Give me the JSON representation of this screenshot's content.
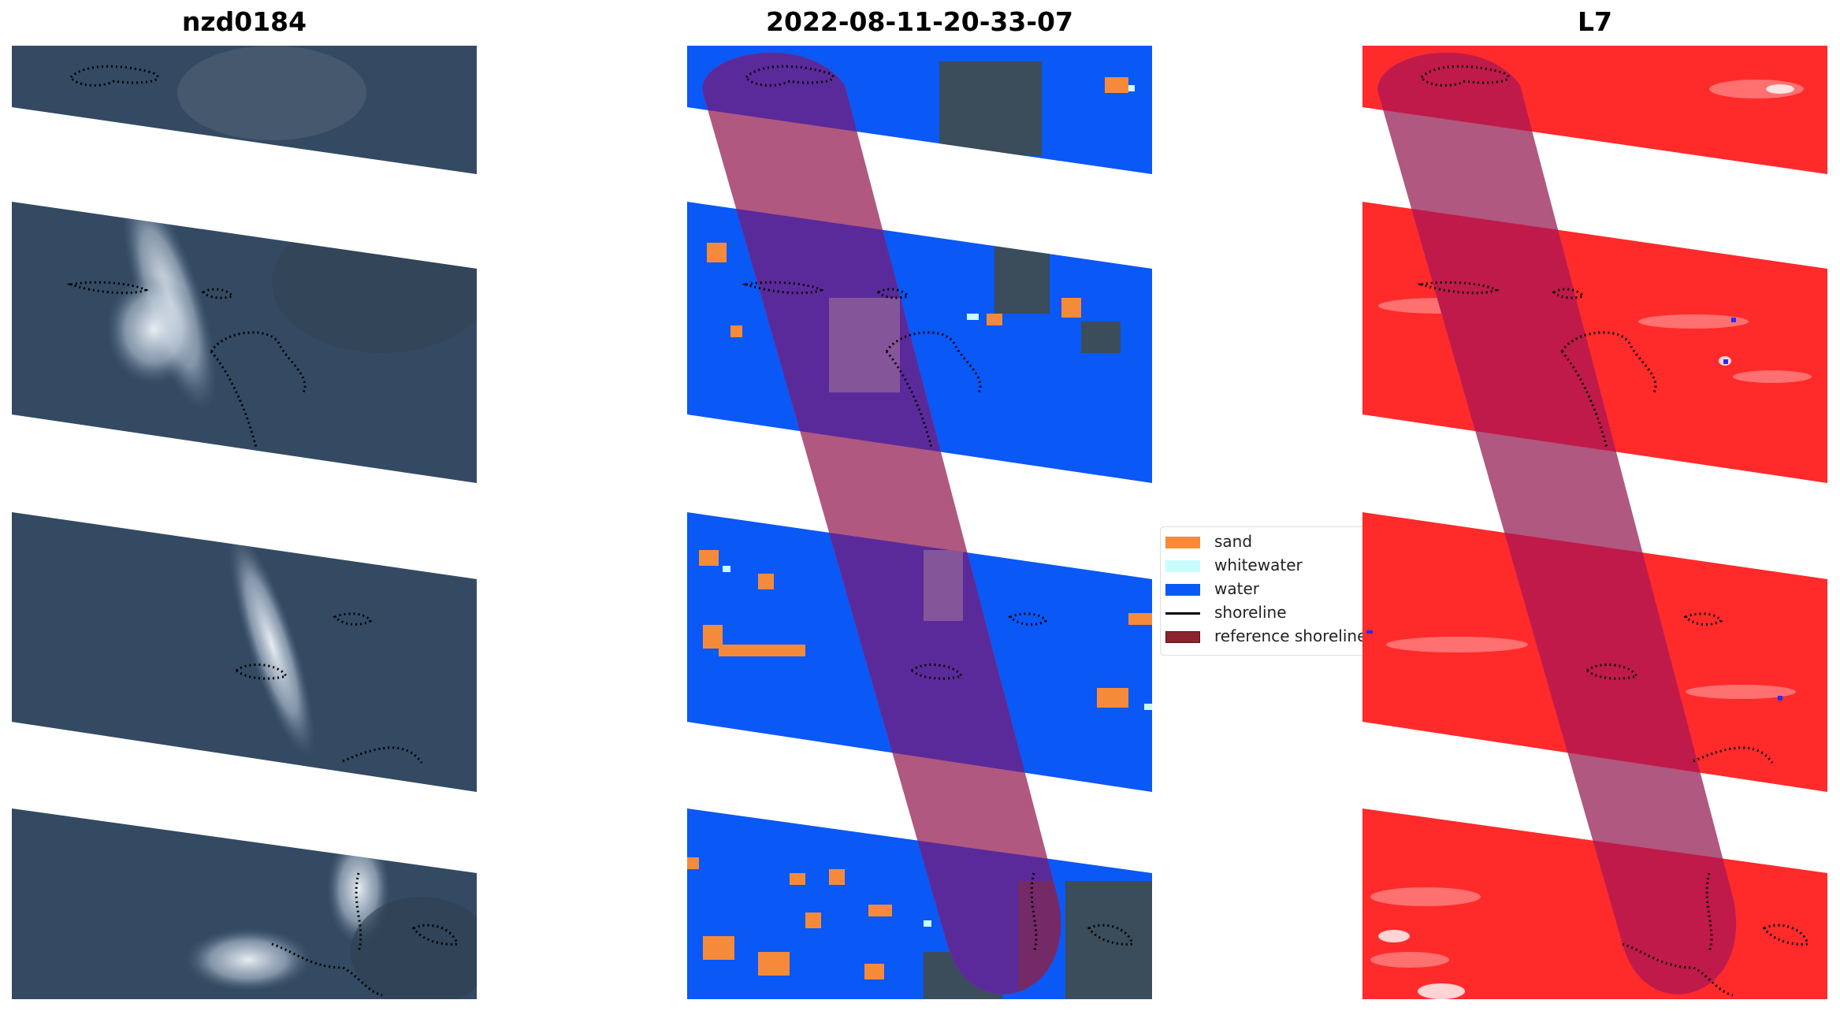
{
  "figure": {
    "panels": [
      {
        "title": "nzd0184",
        "kind": "rgb-satellite"
      },
      {
        "title": "2022-08-11-20-33-07",
        "kind": "classification"
      },
      {
        "title": "L7",
        "kind": "index-map"
      }
    ]
  },
  "legend": {
    "items": [
      {
        "label": "sand",
        "color": "#f58b3a",
        "type": "patch"
      },
      {
        "label": "whitewater",
        "color": "#c9fdfd",
        "type": "patch"
      },
      {
        "label": "water",
        "color": "#0a58f5",
        "type": "patch"
      },
      {
        "label": "shoreline",
        "color": "#000000",
        "type": "line"
      },
      {
        "label": "reference shoreline",
        "color": "#8b2430",
        "type": "patch"
      }
    ]
  },
  "colors": {
    "imagery_base": "#3a506b",
    "cloud": "#dde8f2",
    "water": "#0a58f5",
    "sand": "#f58b3a",
    "whitewater": "#c9fdfd",
    "land": "#3b4c5a",
    "index_red": "#ff2a2a",
    "buffer_purple": "#7a2a72",
    "reference_band": "#b0587f"
  }
}
